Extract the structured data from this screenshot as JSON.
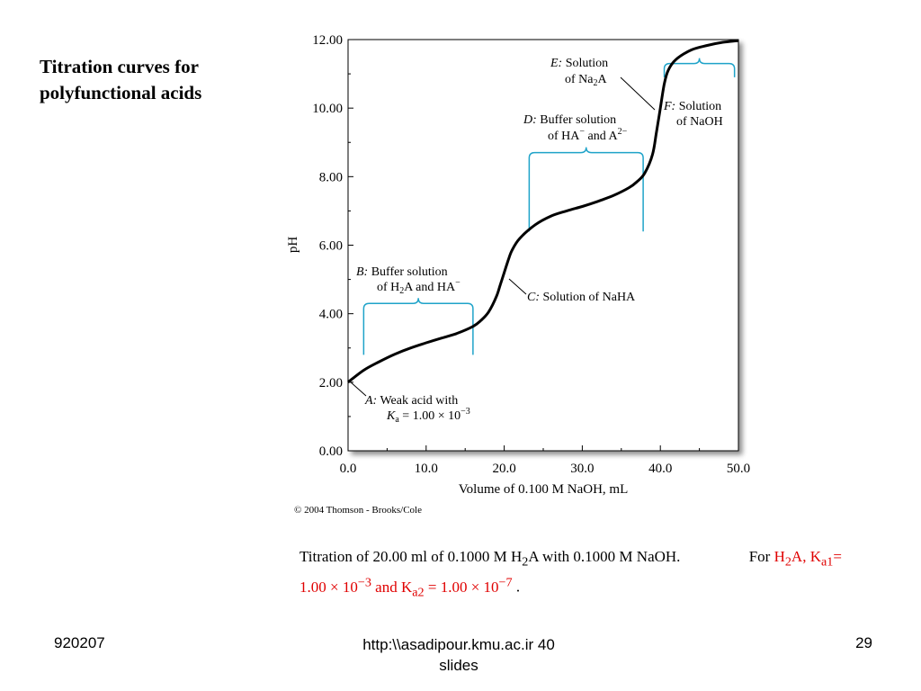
{
  "slide": {
    "title_line1": "Titration curves for",
    "title_line2": "polyfunctional acids"
  },
  "chart_data": {
    "type": "line",
    "xlabel": "Volume of 0.100 M NaOH, mL",
    "ylabel": "pH",
    "xlim": [
      0,
      50
    ],
    "ylim": [
      0,
      12
    ],
    "x_ticks": [
      "0.0",
      "10.0",
      "20.0",
      "30.0",
      "40.0",
      "50.0"
    ],
    "y_ticks": [
      "0.00",
      "2.00",
      "4.00",
      "6.00",
      "8.00",
      "10.00",
      "12.00"
    ],
    "grid": false,
    "series": [
      {
        "x": [
          0,
          2,
          4,
          6,
          8,
          10,
          12,
          14,
          16,
          17,
          18,
          19,
          19.5,
          20,
          20.5,
          21,
          22,
          24,
          26,
          28,
          30,
          32,
          34,
          36,
          37,
          38,
          39,
          39.5,
          40,
          40.5,
          41,
          42,
          44,
          46,
          48,
          50
        ],
        "y": [
          2.0,
          2.35,
          2.6,
          2.82,
          3.0,
          3.15,
          3.29,
          3.43,
          3.63,
          3.8,
          4.05,
          4.5,
          4.85,
          5.2,
          5.55,
          5.85,
          6.2,
          6.6,
          6.85,
          7.0,
          7.13,
          7.28,
          7.45,
          7.68,
          7.85,
          8.1,
          8.65,
          9.3,
          10.0,
          10.7,
          11.1,
          11.42,
          11.7,
          11.83,
          11.92,
          11.97
        ],
        "color": "#000000"
      }
    ],
    "annotations": {
      "A_letter": "A:",
      "A_line1": " Weak acid with",
      "A_line2_k": "K",
      "A_line2_sub": "a",
      "A_line2_rest": " = 1.00 × 10",
      "A_line2_sup": "−3",
      "B_letter": "B:",
      "B_line1": " Buffer solution",
      "B_line2_a": "of H",
      "B_line2_sub": "2",
      "B_line2_b": "A and HA",
      "B_line2_sup": "−",
      "C_letter": "C:",
      "C_line1": " Solution of NaHA",
      "D_letter": "D:",
      "D_line1": " Buffer solution",
      "D_line2_a": "of HA",
      "D_line2_sup1": "−",
      "D_line2_b": " and A",
      "D_line2_sup2": "2−",
      "E_letter": "E:",
      "E_line1": " Solution",
      "E_line2_a": "of Na",
      "E_line2_sub": "2",
      "E_line2_b": "A",
      "F_letter": "F:",
      "F_line1": " Solution",
      "F_line2": "of NaOH",
      "bracket_color": "#1fa3c9"
    },
    "brackets": [
      {
        "x_start": 2,
        "x_end": 16,
        "y_bottom": 2.8,
        "y_top": 4.3
      },
      {
        "x_start": 23.2,
        "x_end": 37.8,
        "y_bottom": 6.4,
        "y_top": 8.7
      },
      {
        "x_start": 40.5,
        "x_end": 49.5,
        "y_bottom": 10.9,
        "y_top": 11.3
      }
    ],
    "copyright": "© 2004 Thomson - Brooks/Cole"
  },
  "caption": {
    "p1": "Titration of 20.00 ml of 0.1000 M H",
    "p1_sub": "2",
    "p2": "A with 0.1000 M NaOH.",
    "p3": "For ",
    "r1": "H",
    "r1_sub": "2",
    "r2": "A, K",
    "r2_sub": "a1",
    "r3": "= 1.00 × 10",
    "r3_sup": "−3",
    "r4": " and K",
    "r4_sub": "a2",
    "r5": " = 1.00 × 10",
    "r5_sup": "−7",
    "end": " ."
  },
  "footer": {
    "left": "920207",
    "center_line1": "http:\\\\asadipour.kmu.ac.ir  40",
    "center_line2": "slides",
    "right": "29"
  }
}
